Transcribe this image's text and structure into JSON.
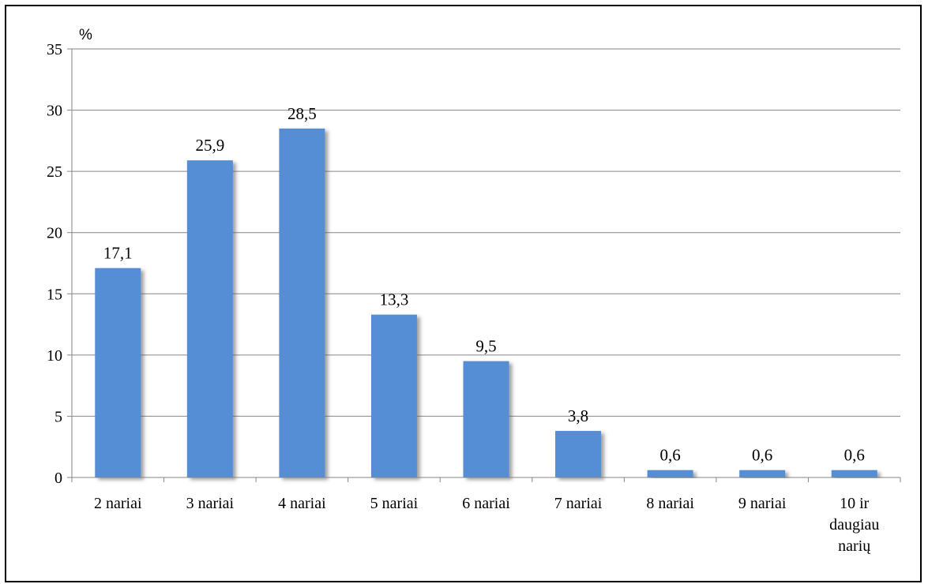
{
  "chart_data": {
    "type": "bar",
    "unit_label": "%",
    "categories": [
      [
        "2 nariai"
      ],
      [
        "3 nariai"
      ],
      [
        "4 nariai"
      ],
      [
        "5 nariai"
      ],
      [
        "6 nariai"
      ],
      [
        "7  nariai"
      ],
      [
        "8 nariai"
      ],
      [
        "9 nariai"
      ],
      [
        "10 ir",
        "daugiau",
        "narių"
      ]
    ],
    "values": [
      17.1,
      25.9,
      28.5,
      13.3,
      9.5,
      3.8,
      0.6,
      0.6,
      0.6
    ],
    "value_labels": [
      "17,1",
      "25,9",
      "28,5",
      "13,3",
      "9,5",
      "3,8",
      "0,6",
      "0,6",
      "0,6"
    ],
    "y_ticks": [
      0,
      5,
      10,
      15,
      20,
      25,
      30,
      35
    ],
    "ylim": [
      0,
      35
    ],
    "grid": true,
    "legend": "none",
    "colors": {
      "bar": "#558ed5",
      "grid": "#868686",
      "shadow": "#7f7f7f"
    }
  }
}
